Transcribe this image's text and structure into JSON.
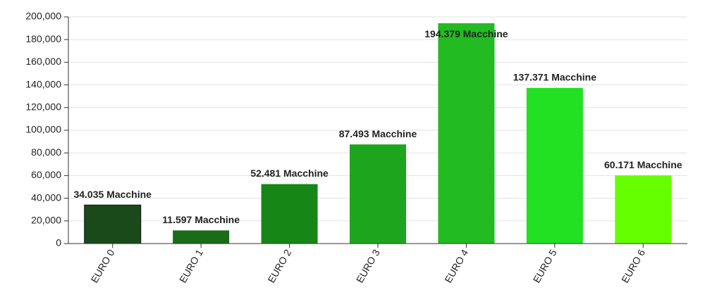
{
  "chart_data": {
    "type": "bar",
    "categories": [
      "EURO 0",
      "EURO 1",
      "EURO 2",
      "EURO 3",
      "EURO 4",
      "EURO 5",
      "EURO 6"
    ],
    "values": [
      34035,
      11597,
      52481,
      87493,
      194379,
      137371,
      60171
    ],
    "value_labels": [
      "34.035 Macchine",
      "11.597 Macchine",
      "52.481 Macchine",
      "87.493 Macchine",
      "194.379 Macchine",
      "137.371 Macchine",
      "60.171 Macchine"
    ],
    "colors": [
      "#1a4a1a",
      "#1a6b1a",
      "#168616",
      "#1ea51e",
      "#22bb22",
      "#22e022",
      "#66ff00"
    ],
    "ylim": [
      0,
      200000
    ],
    "yticks": [
      0,
      {
        "value": 20000,
        "label": "20,000"
      },
      {
        "value": 40000,
        "label": "40,000"
      },
      {
        "value": 60000,
        "label": "60,000"
      },
      {
        "value": 80000,
        "label": "80,000"
      },
      {
        "value": 100000,
        "label": "100,000"
      },
      {
        "value": 120000,
        "label": "120,000"
      },
      {
        "value": 140000,
        "label": "140,000"
      },
      {
        "value": 160000,
        "label": "160,000"
      },
      {
        "value": 180000,
        "label": "180,000"
      },
      {
        "value": 200000,
        "label": "200,000"
      }
    ],
    "grid": true
  }
}
